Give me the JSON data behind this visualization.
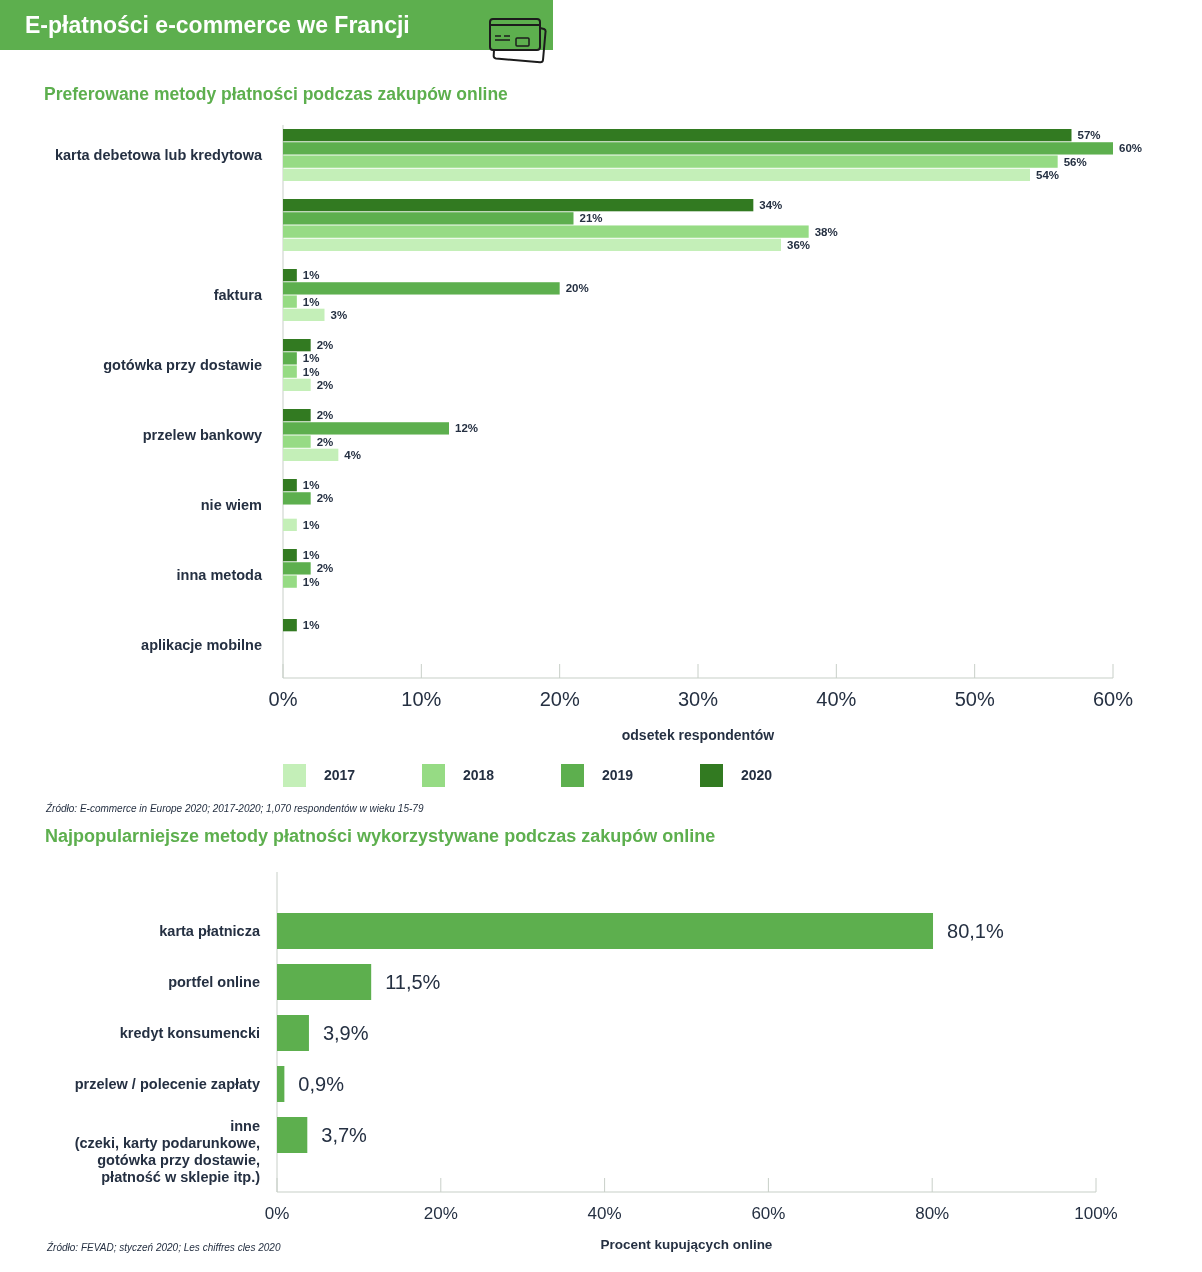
{
  "chart_data": [
    {
      "type": "bar",
      "orientation": "horizontal",
      "title": "E-płatności e-commerce we Francji",
      "subtitle": "Preferowane metody płatności podczas zakupów online",
      "categories": [
        "karta debetowa lub kredytowa",
        null,
        "faktura",
        "gotówka przy dostawie",
        "przelew bankowy",
        "nie wiem",
        "inna metoda",
        "aplikacje mobilne"
      ],
      "series": [
        {
          "name": "2017",
          "color": "#c4efb8",
          "values": [
            54,
            36,
            3,
            2,
            4,
            1,
            null,
            null
          ],
          "value_labels": [
            "54%",
            "36%",
            "3%",
            "2%",
            "4%",
            "1%",
            null,
            null
          ]
        },
        {
          "name": "2018",
          "color": "#96db84",
          "values": [
            56,
            38,
            1,
            1,
            2,
            null,
            1,
            null
          ],
          "value_labels": [
            "56%",
            "38%",
            "1%",
            "1%",
            "2%",
            null,
            "1%",
            null
          ]
        },
        {
          "name": "2019",
          "color": "#5daf4e",
          "values": [
            60,
            21,
            20,
            1,
            12,
            2,
            2,
            null
          ],
          "value_labels": [
            "60%",
            "21%",
            "20%",
            "1%",
            "12%",
            "2%",
            "2%",
            null
          ]
        },
        {
          "name": "2020",
          "color": "#327a21",
          "values": [
            57,
            34,
            1,
            2,
            2,
            1,
            1,
            1
          ],
          "value_labels": [
            "57%",
            "34%",
            "1%",
            "2%",
            "2%",
            "1%",
            "1%",
            "1%"
          ]
        }
      ],
      "xlabel": "odsetek respondentów",
      "xlim": [
        0,
        60
      ],
      "xticks": [
        {
          "value": 0,
          "label": "0%"
        },
        {
          "value": 10,
          "label": "10%"
        },
        {
          "value": 20,
          "label": "20%"
        },
        {
          "value": 30,
          "label": "30%"
        },
        {
          "value": 40,
          "label": "40%"
        },
        {
          "value": 50,
          "label": "50%"
        },
        {
          "value": 60,
          "label": "60%"
        }
      ],
      "legend": "bottom",
      "annotations": [
        "Źródło: E-commerce in Europe 2020; 2017-2020; 1,070 respondentów w wieku 15-79"
      ]
    },
    {
      "type": "bar",
      "orientation": "horizontal",
      "title": "Najpopularniejsze metody płatności wykorzystywane podczas zakupów online",
      "categories": [
        "karta płatnicza",
        "portfel online",
        "kredyt konsumencki",
        "przelew / polecenie zapłaty",
        "inne\n(czeki, karty podarunkowe,\ngotówka przy dostawie,\npłatność w sklepie itp.)"
      ],
      "values": [
        80.1,
        11.5,
        3.9,
        0.9,
        3.7
      ],
      "value_labels": [
        "80,1%",
        "11,5%",
        "3,9%",
        "0,9%",
        "3,7%"
      ],
      "color": "#5daf4e",
      "xlabel": "Procent kupujących online",
      "xlim": [
        0,
        100
      ],
      "xticks": [
        {
          "value": 0,
          "label": "0%"
        },
        {
          "value": 20,
          "label": "20%"
        },
        {
          "value": 40,
          "label": "40%"
        },
        {
          "value": 60,
          "label": "60%"
        },
        {
          "value": 80,
          "label": "80%"
        },
        {
          "value": 100,
          "label": "100%"
        }
      ],
      "annotations": [
        "Źródło: FEVAD; styczeń 2020; Les chiffres cles 2020"
      ]
    }
  ]
}
